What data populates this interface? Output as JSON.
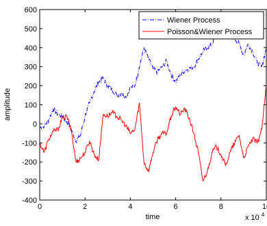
{
  "chart_data": {
    "type": "line",
    "title": "",
    "xlabel": "time",
    "ylabel": "amplitude",
    "x_exponent_label": "x 10",
    "x_exponent_power": "4",
    "xlim": [
      0,
      10000
    ],
    "ylim": [
      -400,
      600
    ],
    "x_ticks": [
      0,
      2000,
      4000,
      6000,
      8000,
      10000
    ],
    "x_tick_labels": [
      "0",
      "2",
      "4",
      "6",
      "8",
      "10"
    ],
    "y_ticks": [
      -400,
      -300,
      -200,
      -100,
      0,
      100,
      200,
      300,
      400,
      500,
      600
    ],
    "y_tick_labels": [
      "-400",
      "-300",
      "-200",
      "-100",
      "0",
      "100",
      "200",
      "300",
      "400",
      "500",
      "600"
    ],
    "grid": false,
    "legend_position": "top-right",
    "series": [
      {
        "name": "Wiener Process",
        "color": "#0000ff",
        "dash": "dashdot",
        "x": [
          0,
          200,
          400,
          600,
          800,
          1000,
          1200,
          1400,
          1600,
          1800,
          2000,
          2200,
          2400,
          2600,
          2800,
          3000,
          3200,
          3400,
          3600,
          3800,
          4000,
          4200,
          4400,
          4600,
          4800,
          5000,
          5200,
          5400,
          5600,
          5800,
          6000,
          6200,
          6400,
          6600,
          6800,
          7000,
          7200,
          7400,
          7600,
          7800,
          8000,
          8200,
          8400,
          8600,
          8800,
          9000,
          9200,
          9400,
          9600,
          9800,
          10000
        ],
        "y": [
          -20,
          -10,
          20,
          80,
          50,
          40,
          10,
          -30,
          -90,
          -60,
          40,
          110,
          170,
          220,
          240,
          200,
          180,
          150,
          160,
          140,
          190,
          200,
          300,
          400,
          340,
          290,
          270,
          300,
          330,
          260,
          220,
          260,
          280,
          290,
          300,
          340,
          380,
          400,
          420,
          470,
          470,
          470,
          460,
          450,
          420,
          360,
          420,
          380,
          320,
          300,
          400
        ]
      },
      {
        "name": "Poisson&Wiener Process",
        "color": "#ff0000",
        "dash": "solid",
        "x": [
          0,
          200,
          400,
          600,
          800,
          1000,
          1200,
          1400,
          1600,
          1800,
          2000,
          2200,
          2400,
          2600,
          2800,
          3000,
          3200,
          3400,
          3600,
          3800,
          4000,
          4200,
          4400,
          4600,
          4800,
          5000,
          5200,
          5400,
          5600,
          5800,
          6000,
          6200,
          6400,
          6600,
          6800,
          7000,
          7200,
          7400,
          7600,
          7800,
          8000,
          8200,
          8400,
          8600,
          8800,
          9000,
          9200,
          9400,
          9600,
          9800,
          10000
        ],
        "y": [
          -100,
          -150,
          -80,
          -40,
          -30,
          30,
          40,
          -40,
          -200,
          -180,
          -150,
          -90,
          -160,
          -190,
          50,
          40,
          60,
          40,
          20,
          -10,
          -50,
          -30,
          110,
          -200,
          -250,
          -150,
          -80,
          -50,
          -50,
          40,
          90,
          50,
          80,
          30,
          -50,
          -150,
          -300,
          -250,
          -150,
          -120,
          -160,
          -220,
          -150,
          -100,
          -60,
          -180,
          -120,
          -80,
          -100,
          -30,
          200
        ]
      }
    ]
  }
}
